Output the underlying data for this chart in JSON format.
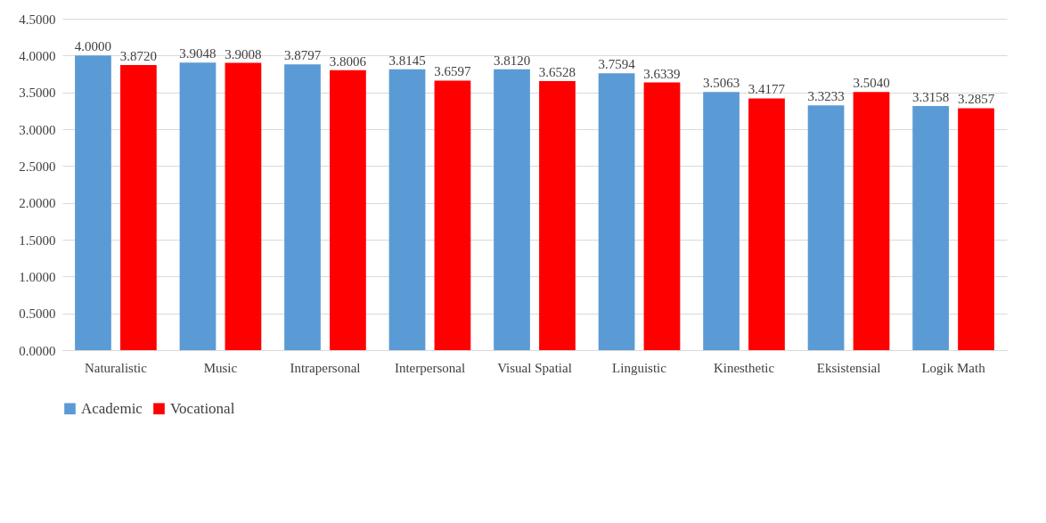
{
  "chart_data": {
    "type": "bar",
    "categories": [
      "Naturalistic",
      "Music",
      "Intrapersonal",
      "Interpersonal",
      "Visual Spatial",
      "Linguistic",
      "Kinesthetic",
      "Eksistensial",
      "Logik Math"
    ],
    "series": [
      {
        "name": "Academic",
        "color": "#5b9bd5",
        "values": [
          4.0,
          3.9048,
          3.8797,
          3.8145,
          3.812,
          3.7594,
          3.5063,
          3.3233,
          3.3158
        ],
        "value_labels": [
          "4.0000",
          "3.9048",
          "3.8797",
          "3.8145",
          "3.8120",
          "3.7594",
          "3.5063",
          "3.3233",
          "3.3158"
        ]
      },
      {
        "name": "Vocational",
        "color": "#ff0000",
        "values": [
          3.872,
          3.9008,
          3.8006,
          3.6597,
          3.6528,
          3.6339,
          3.4177,
          3.504,
          3.2857
        ],
        "value_labels": [
          "3.8720",
          "3.9008",
          "3.8006",
          "3.6597",
          "3.6528",
          "3.6339",
          "3.4177",
          "3.5040",
          "3.2857"
        ]
      }
    ],
    "ylim": [
      0,
      4.5
    ],
    "yticks": [
      {
        "value": 0,
        "label": "0.0000"
      },
      {
        "value": 0.5,
        "label": "0.5000"
      },
      {
        "value": 1,
        "label": "1.0000"
      },
      {
        "value": 1.5,
        "label": "1.5000"
      },
      {
        "value": 2,
        "label": "2.0000"
      },
      {
        "value": 2.5,
        "label": "2.5000"
      },
      {
        "value": 3,
        "label": "3.0000"
      },
      {
        "value": 3.5,
        "label": "3.5000"
      },
      {
        "value": 4,
        "label": "4.0000"
      },
      {
        "value": 4.5,
        "label": "4.5000"
      }
    ],
    "grid": "y",
    "legend": "bottom"
  }
}
